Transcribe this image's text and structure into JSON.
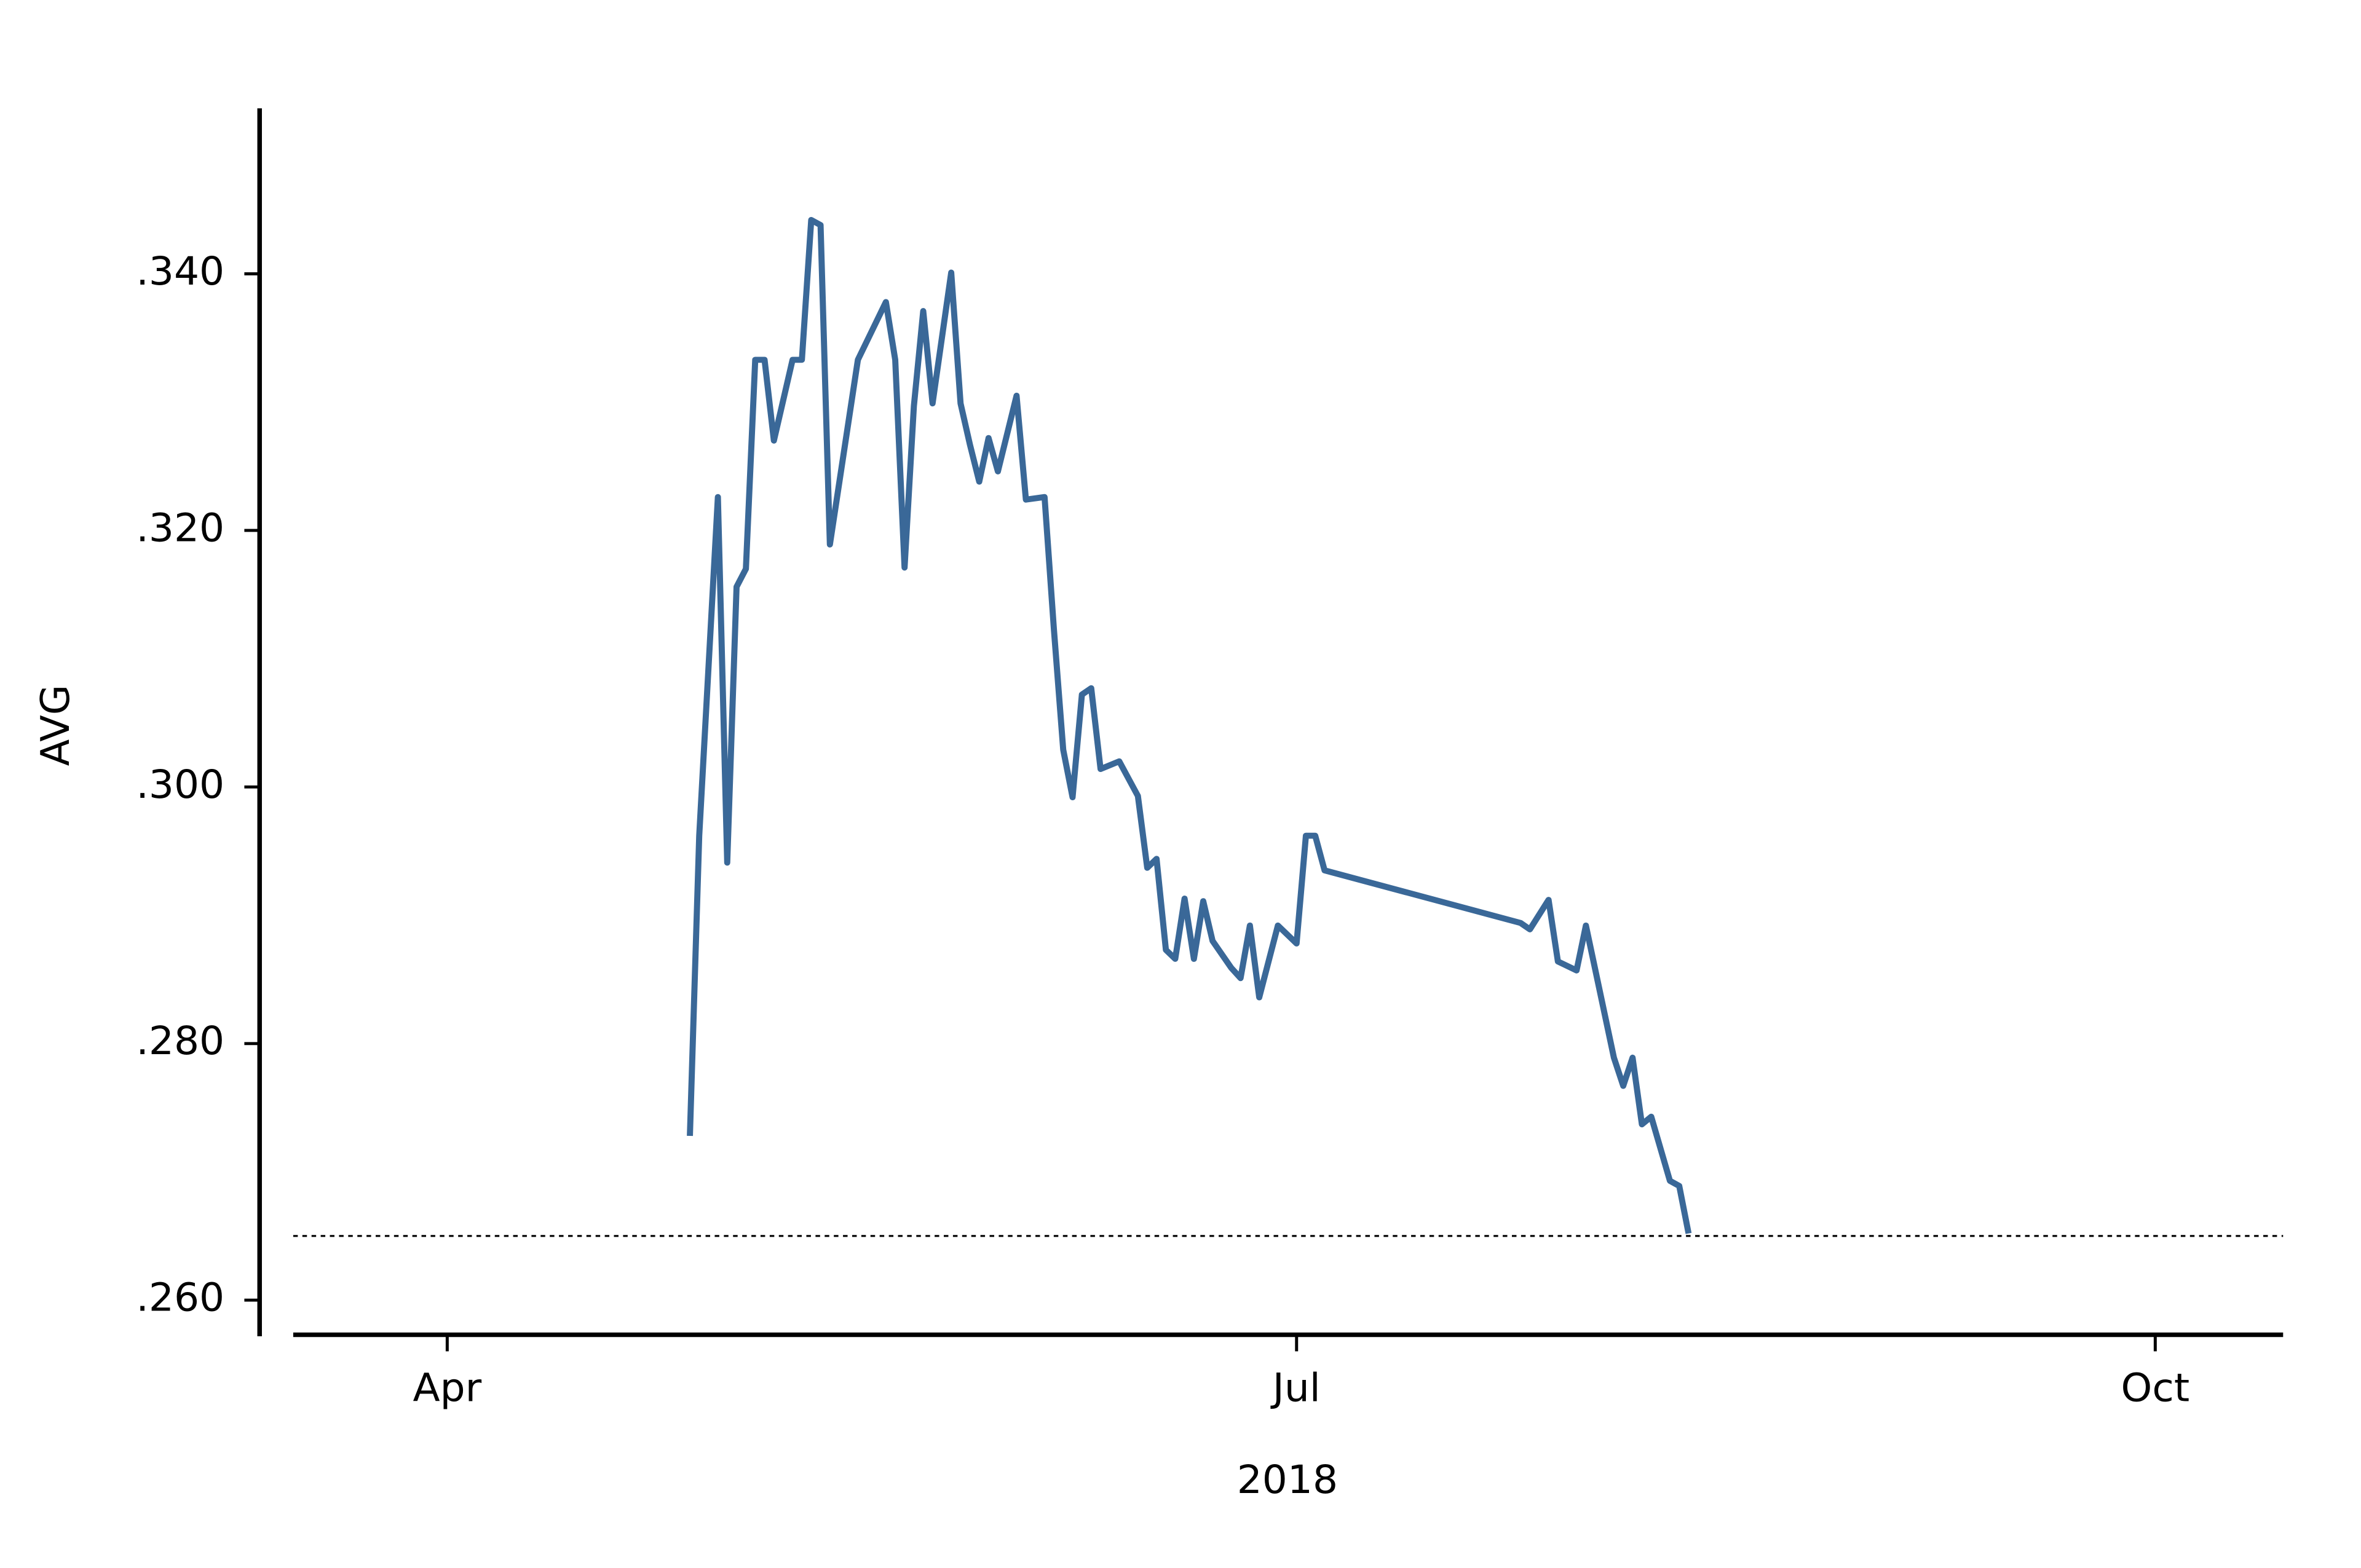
{
  "chart_data": {
    "type": "line",
    "xlabel": "2018",
    "ylabel": "AVG",
    "xlim": [
      74.5,
      287.7
    ],
    "xticks": [
      {
        "value": 91,
        "label": "Apr"
      },
      {
        "value": 182,
        "label": "Jul"
      },
      {
        "value": 274,
        "label": "Oct"
      }
    ],
    "ylim": [
      0.2573,
      0.3529
    ],
    "yticks": [
      {
        "value": 0.26,
        "label": ".260"
      },
      {
        "value": 0.28,
        "label": ".280"
      },
      {
        "value": 0.3,
        "label": ".300"
      },
      {
        "value": 0.32,
        "label": ".320"
      },
      {
        "value": 0.34,
        "label": ".340"
      }
    ],
    "hline": 0.265,
    "grid": false,
    "series": [
      {
        "color": "#3a6898",
        "x": [
          117,
          118,
          120,
          121,
          122,
          123,
          124,
          125,
          126,
          128,
          129,
          130,
          131,
          132,
          135,
          138,
          139,
          140,
          141,
          142,
          143,
          145,
          146,
          147,
          148,
          149,
          150,
          152,
          153,
          155,
          156,
          157,
          158,
          159,
          160,
          161,
          163,
          165,
          166,
          167,
          168,
          169,
          170,
          171,
          172,
          173,
          175,
          176,
          177,
          178,
          180,
          182,
          183,
          184,
          185,
          206,
          207,
          209,
          210,
          212,
          213,
          216,
          217,
          218,
          219,
          220,
          222,
          223,
          224
        ],
        "values": [
          0.2728,
          0.2962,
          0.3226,
          0.2941,
          0.3156,
          0.317,
          0.3333,
          0.3333,
          0.327,
          0.3333,
          0.3333,
          0.3442,
          0.3438,
          0.3189,
          0.3333,
          0.3378,
          0.3333,
          0.3171,
          0.3297,
          0.3371,
          0.3299,
          0.3401,
          0.3299,
          0.3267,
          0.3238,
          0.3272,
          0.3246,
          0.3305,
          0.3224,
          0.3226,
          0.3123,
          0.3029,
          0.2992,
          0.3072,
          0.3077,
          0.3014,
          0.302,
          0.2993,
          0.2937,
          0.2944,
          0.2873,
          0.2866,
          0.2913,
          0.2866,
          0.2911,
          0.288,
          0.2859,
          0.2851,
          0.2892,
          0.2836,
          0.2892,
          0.2878,
          0.2962,
          0.2962,
          0.2935,
          0.2894,
          0.2889,
          0.2912,
          0.2864,
          0.2857,
          0.2892,
          0.2789,
          0.2767,
          0.2789,
          0.2737,
          0.2743,
          0.2693,
          0.2689,
          0.2652
        ]
      }
    ]
  }
}
